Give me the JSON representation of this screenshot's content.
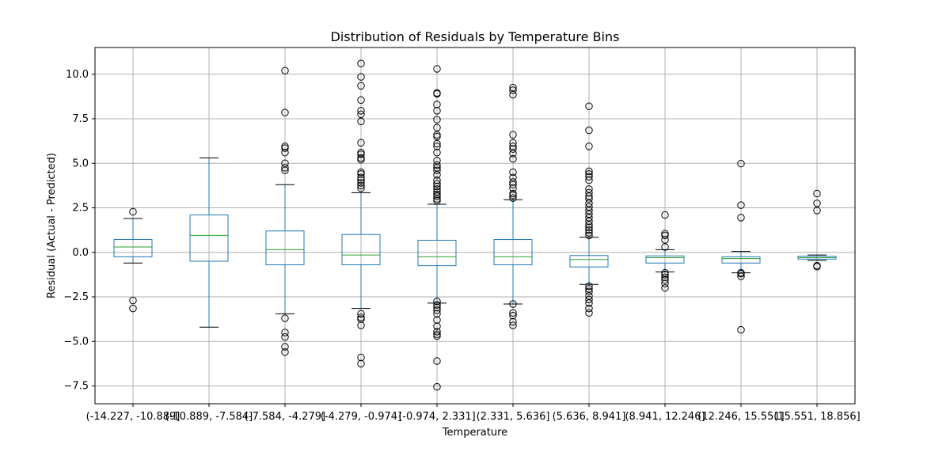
{
  "chart_data": {
    "type": "boxplot",
    "title": "Distribution of Residuals by Temperature Bins",
    "xlabel": "Temperature",
    "ylabel": "Residual (Actual - Predicted)",
    "ylim": [
      -8.5,
      11.5
    ],
    "yticks": [
      -7.5,
      -5.0,
      -2.5,
      0.0,
      2.5,
      5.0,
      7.5,
      10.0
    ],
    "ytick_labels": [
      "−7.5",
      "−5.0",
      "−2.5",
      "0.0",
      "2.5",
      "5.0",
      "7.5",
      "10.0"
    ],
    "grid": true,
    "colors": {
      "box": "#1f77b4",
      "median": "#2ca02c",
      "grid": "#b0b0b0",
      "whisker_cap": "#000000"
    },
    "categories": [
      "(-14.227, -10.889]",
      "(-10.889, -7.584]",
      "(-7.584, -4.279]",
      "(-4.279, -0.974]",
      "(-0.974, 2.331]",
      "(2.331, 5.636]",
      "(5.636, 8.941]",
      "(8.941, 12.246]",
      "(12.246, 15.551]",
      "(15.551, 18.856]"
    ],
    "boxes": [
      {
        "whislo": -0.6,
        "q1": -0.25,
        "med": 0.3,
        "q3": 0.72,
        "whishi": 1.9,
        "fliers": [
          2.28,
          -2.7,
          -3.15
        ]
      },
      {
        "whislo": -4.2,
        "q1": -0.5,
        "med": 0.95,
        "q3": 2.1,
        "whishi": 5.3,
        "fliers": []
      },
      {
        "whislo": -3.45,
        "q1": -0.7,
        "med": 0.15,
        "q3": 1.2,
        "whishi": 3.8,
        "fliers": [
          10.2,
          7.85,
          5.95,
          5.85,
          5.6,
          5.0,
          4.75,
          4.6,
          -3.7,
          -4.5,
          -4.75,
          -5.3,
          -5.6
        ]
      },
      {
        "whislo": -3.15,
        "q1": -0.7,
        "med": -0.15,
        "q3": 1.0,
        "whishi": 3.35,
        "fliers": [
          10.6,
          9.85,
          9.35,
          8.55,
          7.95,
          7.75,
          7.35,
          6.15,
          5.6,
          5.5,
          5.3,
          5.2,
          4.5,
          4.4,
          4.2,
          4.05,
          3.9,
          3.75,
          3.6,
          -3.45,
          -3.65,
          -3.75,
          -4.1,
          -5.9,
          -6.25
        ]
      },
      {
        "whislo": -2.85,
        "q1": -0.75,
        "med": -0.25,
        "q3": 0.68,
        "whishi": 2.7,
        "fliers": [
          10.3,
          8.95,
          8.9,
          8.3,
          7.95,
          7.45,
          7.0,
          6.6,
          6.5,
          6.1,
          5.95,
          5.6,
          5.15,
          4.9,
          4.75,
          4.6,
          4.35,
          4.05,
          3.85,
          3.7,
          3.55,
          3.4,
          3.25,
          3.15,
          3.0,
          2.9,
          -2.75,
          -2.95,
          -3.1,
          -3.25,
          -3.45,
          -3.8,
          -4.15,
          -4.45,
          -4.6,
          -4.7,
          -6.1,
          -7.55
        ]
      },
      {
        "whislo": -2.9,
        "q1": -0.7,
        "med": -0.25,
        "q3": 0.72,
        "whishi": 2.95,
        "fliers": [
          9.25,
          9.1,
          8.85,
          6.6,
          6.15,
          5.95,
          5.8,
          5.55,
          5.25,
          4.5,
          4.2,
          3.95,
          3.8,
          3.6,
          3.3,
          3.2,
          3.05,
          -2.9,
          -3.4,
          -3.55,
          -3.9,
          -4.1
        ]
      },
      {
        "whislo": -1.8,
        "q1": -0.82,
        "med": -0.4,
        "q3": -0.18,
        "whishi": 0.85,
        "fliers": [
          8.2,
          6.85,
          5.95,
          4.55,
          4.4,
          4.25,
          4.05,
          3.55,
          3.35,
          3.15,
          3.0,
          2.75,
          2.55,
          2.35,
          2.15,
          1.95,
          1.75,
          1.55,
          1.4,
          1.25,
          1.1,
          0.95,
          -1.9,
          -2.05,
          -2.2,
          -2.45,
          -2.65,
          -2.85,
          -3.15,
          -3.4
        ]
      },
      {
        "whislo": -1.1,
        "q1": -0.6,
        "med": -0.3,
        "q3": -0.2,
        "whishi": 0.15,
        "fliers": [
          2.1,
          1.05,
          0.95,
          0.7,
          0.3,
          -1.15,
          -1.25,
          -1.4,
          -1.55,
          -1.75,
          -2.0
        ]
      },
      {
        "whislo": -1.15,
        "q1": -0.6,
        "med": -0.35,
        "q3": -0.25,
        "whishi": 0.05,
        "fliers": [
          4.98,
          2.65,
          1.95,
          -1.15,
          -1.2,
          -1.35,
          -4.35
        ]
      },
      {
        "whislo": -0.45,
        "q1": -0.38,
        "med": -0.3,
        "q3": -0.22,
        "whishi": -0.15,
        "fliers": [
          3.3,
          2.75,
          2.35,
          -0.75,
          -0.8
        ]
      }
    ]
  }
}
